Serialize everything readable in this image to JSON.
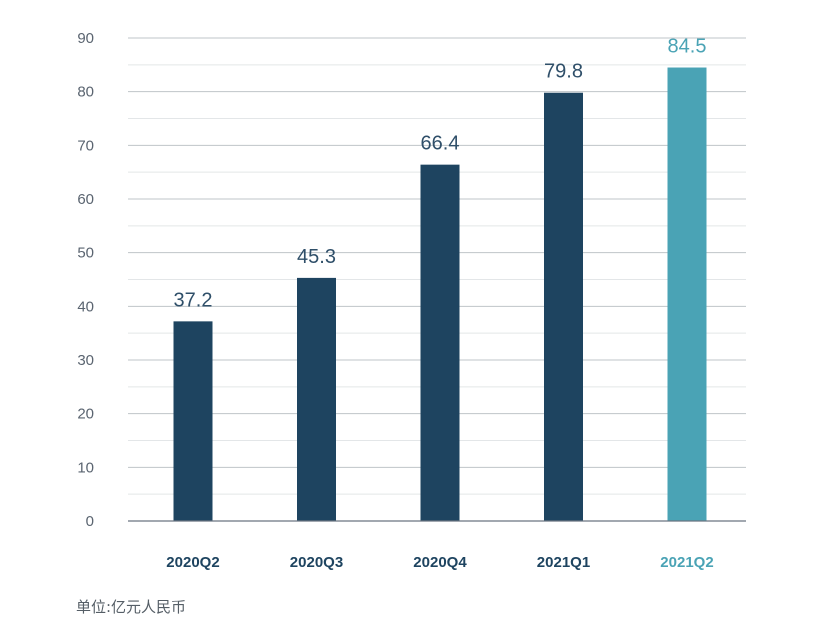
{
  "chart_data": {
    "type": "bar",
    "categories": [
      "2020Q2",
      "2020Q3",
      "2020Q4",
      "2021Q1",
      "2021Q2"
    ],
    "values": [
      37.2,
      45.3,
      66.4,
      79.8,
      84.5
    ],
    "value_labels": [
      "37.2",
      "45.3",
      "66.4",
      "79.8",
      "84.5"
    ],
    "highlight_index": 4,
    "ylim": [
      0,
      90
    ],
    "yticks": [
      0,
      10,
      20,
      30,
      40,
      50,
      60,
      70,
      80,
      90
    ],
    "grid": true,
    "title": "",
    "xlabel": "",
    "ylabel": ""
  },
  "unit_note": "单位:亿元人民币",
  "colors": {
    "bar": "#1e4460",
    "highlight": "#4aa3b5",
    "grid_major": "#bfc4c8",
    "grid_minor": "#e3e6e8",
    "axis_text": "#5a6470",
    "value_text": "#2f4f69"
  }
}
